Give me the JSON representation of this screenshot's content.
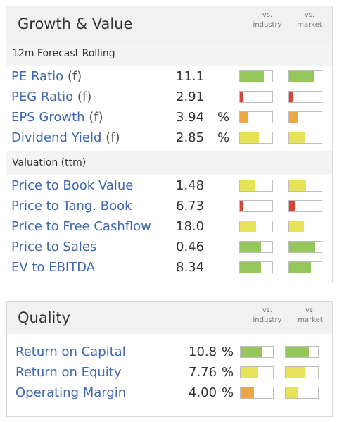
{
  "growth_value": {
    "title": "Growth & Value",
    "col_industry": [
      "vs.",
      "industry"
    ],
    "col_market": [
      "vs.",
      "market"
    ],
    "sections": [
      {
        "label": "12m Forecast Rolling",
        "rows": [
          {
            "label": "PE Ratio",
            "suffix": "(f)",
            "value": "11.1",
            "unit": "",
            "industry": {
              "level": 0.74,
              "color": "#95c75a"
            },
            "market": {
              "level": 0.78,
              "color": "#95c75a"
            }
          },
          {
            "label": "PEG Ratio",
            "suffix": "(f)",
            "value": "2.91",
            "unit": "",
            "industry": {
              "level": 0.1,
              "color": "#d9443a"
            },
            "market": {
              "level": 0.1,
              "color": "#d9443a"
            }
          },
          {
            "label": "EPS Growth",
            "suffix": "(f)",
            "value": "3.94",
            "unit": "%",
            "industry": {
              "level": 0.24,
              "color": "#eba646"
            },
            "market": {
              "level": 0.27,
              "color": "#eba646"
            }
          },
          {
            "label": "Dividend Yield",
            "suffix": "(f)",
            "value": "2.85",
            "unit": "%",
            "industry": {
              "level": 0.58,
              "color": "#e8e25a"
            },
            "market": {
              "level": 0.48,
              "color": "#e8e25a"
            }
          }
        ]
      },
      {
        "label": "Valuation (ttm)",
        "rows": [
          {
            "label": "Price to Book Value",
            "suffix": "",
            "value": "1.48",
            "unit": "",
            "industry": {
              "level": 0.47,
              "color": "#e8e25a"
            },
            "market": {
              "level": 0.52,
              "color": "#e8e25a"
            }
          },
          {
            "label": "Price to Tang. Book",
            "suffix": "",
            "value": "6.73",
            "unit": "",
            "industry": {
              "level": 0.11,
              "color": "#d9443a"
            },
            "market": {
              "level": 0.2,
              "color": "#d9443a"
            }
          },
          {
            "label": "Price to Free Cashflow",
            "suffix": "",
            "value": "18.0",
            "unit": "",
            "industry": {
              "level": 0.5,
              "color": "#e8e25a"
            },
            "market": {
              "level": 0.45,
              "color": "#e8e25a"
            }
          },
          {
            "label": "Price to Sales",
            "suffix": "",
            "value": "0.46",
            "unit": "",
            "industry": {
              "level": 0.65,
              "color": "#95c75a"
            },
            "market": {
              "level": 0.8,
              "color": "#95c75a"
            }
          },
          {
            "label": "EV to EBITDA",
            "suffix": "",
            "value": "8.34",
            "unit": "",
            "industry": {
              "level": 0.66,
              "color": "#95c75a"
            },
            "market": {
              "level": 0.68,
              "color": "#95c75a"
            }
          }
        ]
      }
    ]
  },
  "quality": {
    "title": "Quality",
    "col_industry": [
      "vs.",
      "industry"
    ],
    "col_market": [
      "vs.",
      "market"
    ],
    "rows": [
      {
        "label": "Return on Capital",
        "suffix": "",
        "value": "10.8",
        "unit": "%",
        "industry": {
          "level": 0.68,
          "color": "#95c75a"
        },
        "market": {
          "level": 0.72,
          "color": "#95c75a"
        }
      },
      {
        "label": "Return on Equity",
        "suffix": "",
        "value": "7.76",
        "unit": "%",
        "industry": {
          "level": 0.54,
          "color": "#e8e25a"
        },
        "market": {
          "level": 0.58,
          "color": "#e8e25a"
        }
      },
      {
        "label": "Operating Margin",
        "suffix": "",
        "value": "4.00",
        "unit": "%",
        "industry": {
          "level": 0.42,
          "color": "#eba646"
        },
        "market": {
          "level": 0.38,
          "color": "#e8e25a"
        }
      }
    ]
  }
}
